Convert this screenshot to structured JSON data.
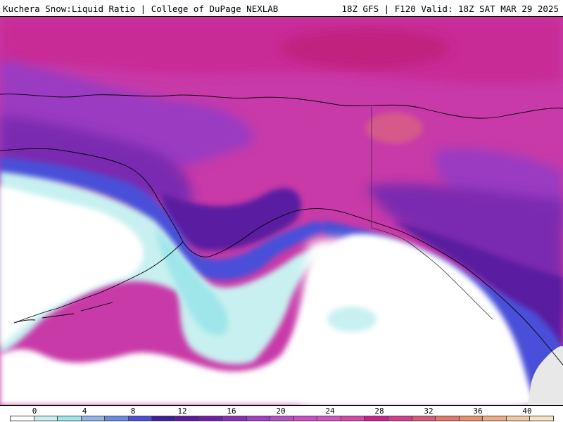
{
  "header": {
    "title": "Kuchera Snow:Liquid Ratio | College of DuPage NEXLAB",
    "run_info": "18Z GFS | F120 Valid: 18Z SAT MAR 29 2025"
  },
  "colorbar": {
    "tick_labels": [
      "0",
      "4",
      "8",
      "12",
      "16",
      "20",
      "24",
      "28",
      "32",
      "36",
      "40"
    ],
    "colors": [
      "#ffffff",
      "#c8f0f0",
      "#9ee6ea",
      "#8fb4e6",
      "#6a8ae0",
      "#4a4fd8",
      "#3a1f9a",
      "#5a1aa0",
      "#6e1fa8",
      "#8a2fb8",
      "#a040c0",
      "#b54fc8",
      "#c84fc8",
      "#d256c0",
      "#d24aa8",
      "#c8208a",
      "#d0408a",
      "#d85a7a",
      "#e0786e",
      "#e69070",
      "#ecac88",
      "#f2c8a4",
      "#f8e2c4"
    ]
  }
}
